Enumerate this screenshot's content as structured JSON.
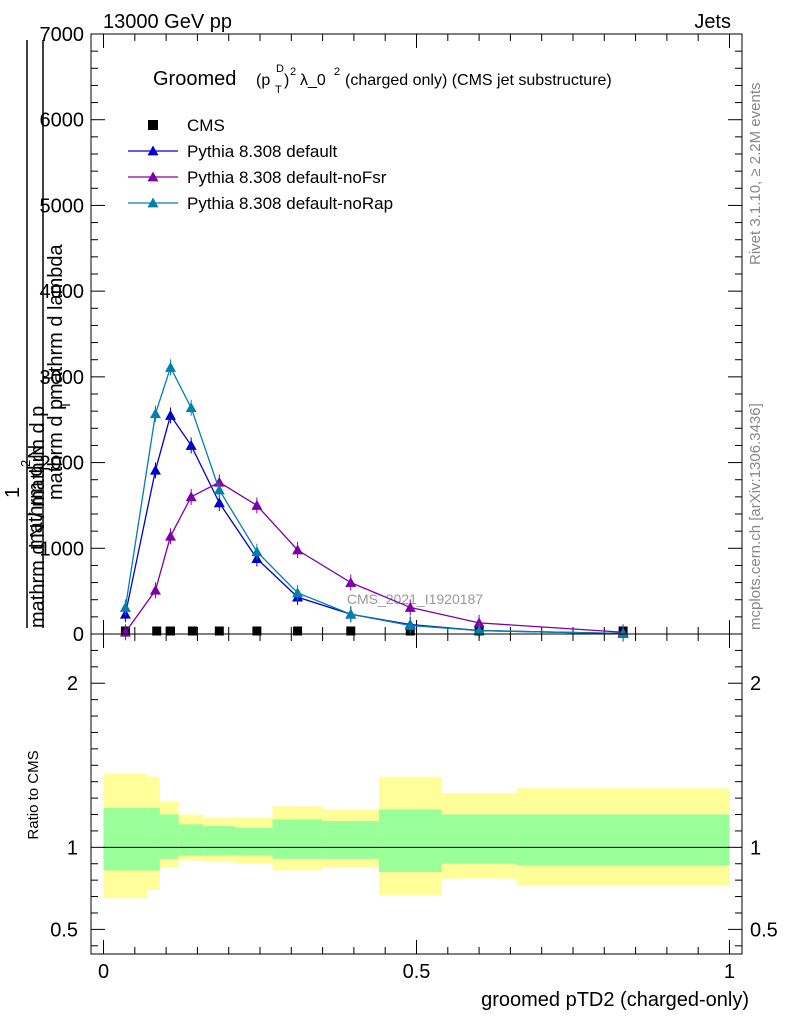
{
  "header": {
    "left": "13000 GeV pp",
    "right": "Jets"
  },
  "side_labels": {
    "rivet": "Rivet 3.1.10, ≥ 2.2M events",
    "mcplots": "mcplots.cern.ch [arXiv:1306.3436]"
  },
  "colors": {
    "cms": "#000000",
    "default": "#0000cc",
    "noFsr": "#8000a8",
    "noRap": "#0080aa",
    "band_inner": "#99ff99",
    "band_outer": "#ffff99"
  },
  "chart_data": [
    {
      "type": "line",
      "title": "Groomed (p_T^D)^2 λ_0^2  (charged only) (CMS jet substructure)",
      "title_parts": {
        "prefix": "Groomed",
        "paren_open": "(p",
        "sub": "T",
        "sup_d": "D",
        "paren_close": ")",
        "sup_2": "2",
        "lambda": "λ_0",
        "sup_2b": "2",
        "suffix": " (charged only) (CMS jet substructure)"
      },
      "ylabel_lines": {
        "top": "mathrm d",
        "top_sup": "2",
        "top_end": "N",
        "mid": "mathrm d p",
        "mid_sub": "T",
        "mid_end": " mathrm d lambda",
        "one": "1",
        "den": "mathrm d N / mathrm d p",
        "den_sub": "T"
      },
      "watermark": "CMS_2021_I1920187",
      "ylim": [
        0,
        7000
      ],
      "y_ticks": [
        0,
        1000,
        2000,
        3000,
        4000,
        5000,
        6000,
        7000
      ],
      "y_tick_labels": [
        "0",
        "1000",
        "2000",
        "3000",
        "4000",
        "5000",
        "6000",
        "7000"
      ],
      "xlim": [
        -0.02,
        1.02
      ],
      "series": [
        {
          "name": "CMS",
          "key": "cms",
          "marker": "square",
          "points": [
            [
              0.035,
              5
            ],
            [
              0.085,
              12
            ],
            [
              0.107,
              18
            ],
            [
              0.142,
              15
            ],
            [
              0.185,
              12
            ],
            [
              0.245,
              10
            ],
            [
              0.31,
              8
            ],
            [
              0.395,
              6
            ],
            [
              0.49,
              4
            ],
            [
              0.6,
              2
            ],
            [
              0.83,
              1
            ]
          ]
        },
        {
          "name": "Pythia 8.308 default",
          "key": "default",
          "marker": "triangle",
          "points": [
            [
              0.035,
              230
            ],
            [
              0.083,
              1910
            ],
            [
              0.107,
              2550
            ],
            [
              0.14,
              2200
            ],
            [
              0.185,
              1530
            ],
            [
              0.245,
              880
            ],
            [
              0.31,
              430
            ],
            [
              0.395,
              230
            ],
            [
              0.49,
              110
            ],
            [
              0.6,
              40
            ],
            [
              0.83,
              5
            ]
          ]
        },
        {
          "name": "Pythia 8.308 default-noFsr",
          "key": "noFsr",
          "marker": "triangle",
          "points": [
            [
              0.035,
              20
            ],
            [
              0.083,
              510
            ],
            [
              0.107,
              1140
            ],
            [
              0.14,
              1600
            ],
            [
              0.185,
              1770
            ],
            [
              0.245,
              1500
            ],
            [
              0.31,
              980
            ],
            [
              0.395,
              600
            ],
            [
              0.49,
              310
            ],
            [
              0.6,
              130
            ],
            [
              0.83,
              20
            ]
          ]
        },
        {
          "name": "Pythia 8.308 default-noRap",
          "key": "noRap",
          "marker": "triangle",
          "points": [
            [
              0.035,
              310
            ],
            [
              0.083,
              2570
            ],
            [
              0.107,
              3110
            ],
            [
              0.14,
              2640
            ],
            [
              0.185,
              1680
            ],
            [
              0.245,
              960
            ],
            [
              0.31,
              480
            ],
            [
              0.395,
              230
            ],
            [
              0.49,
              100
            ],
            [
              0.6,
              40
            ],
            [
              0.83,
              5
            ]
          ]
        }
      ]
    },
    {
      "type": "area",
      "ylabel": "Ratio to CMS",
      "xlabel": "groomed pTD2 (charged-only)",
      "xlim": [
        -0.02,
        1.02
      ],
      "ylim": [
        0.35,
        2.3
      ],
      "x_ticks": [
        0,
        0.5,
        1
      ],
      "x_tick_labels": [
        "0",
        "0.5",
        "1"
      ],
      "y_ticks": [
        0.5,
        1,
        2
      ],
      "y_tick_labels": [
        "0.5",
        "1",
        "2"
      ],
      "bins": [
        {
          "x0": 0.0,
          "x1": 0.07,
          "inner": [
            0.86,
            1.24
          ],
          "outer": [
            0.69,
            1.45
          ]
        },
        {
          "x0": 0.07,
          "x1": 0.09,
          "inner": [
            0.86,
            1.24
          ],
          "outer": [
            0.74,
            1.43
          ]
        },
        {
          "x0": 0.09,
          "x1": 0.12,
          "inner": [
            0.93,
            1.2
          ],
          "outer": [
            0.88,
            1.28
          ]
        },
        {
          "x0": 0.12,
          "x1": 0.16,
          "inner": [
            0.95,
            1.14
          ],
          "outer": [
            0.92,
            1.2
          ]
        },
        {
          "x0": 0.16,
          "x1": 0.21,
          "inner": [
            0.95,
            1.13
          ],
          "outer": [
            0.91,
            1.18
          ]
        },
        {
          "x0": 0.21,
          "x1": 0.27,
          "inner": [
            0.95,
            1.12
          ],
          "outer": [
            0.9,
            1.18
          ]
        },
        {
          "x0": 0.27,
          "x1": 0.35,
          "inner": [
            0.93,
            1.17
          ],
          "outer": [
            0.86,
            1.25
          ]
        },
        {
          "x0": 0.35,
          "x1": 0.44,
          "inner": [
            0.93,
            1.16
          ],
          "outer": [
            0.88,
            1.23
          ]
        },
        {
          "x0": 0.44,
          "x1": 0.54,
          "inner": [
            0.85,
            1.23
          ],
          "outer": [
            0.71,
            1.43
          ]
        },
        {
          "x0": 0.54,
          "x1": 0.66,
          "inner": [
            0.9,
            1.2
          ],
          "outer": [
            0.81,
            1.33
          ]
        },
        {
          "x0": 0.66,
          "x1": 1.0,
          "inner": [
            0.89,
            1.2
          ],
          "outer": [
            0.77,
            1.36
          ]
        }
      ],
      "reference": 1
    }
  ]
}
